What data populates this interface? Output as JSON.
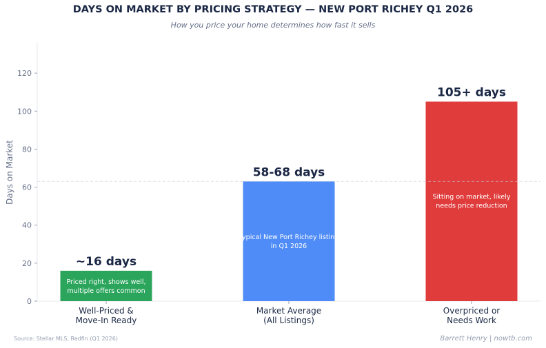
{
  "chart_data": {
    "type": "bar",
    "title": "DAYS ON MARKET BY PRICING STRATEGY — NEW PORT RICHEY Q1 2026",
    "subtitle": "How you price your home determines how fast it sells",
    "ylabel": "Days on Market",
    "xlabel": "",
    "ylim": [
      0,
      136
    ],
    "yticks": [
      0,
      20,
      40,
      60,
      80,
      100,
      120
    ],
    "grid": false,
    "categories": [
      [
        "Well-Priced &",
        "Move-In Ready"
      ],
      [
        "Market Average",
        "(All Listings)"
      ],
      [
        "Overpriced or",
        "Needs Work"
      ]
    ],
    "values": [
      16,
      63,
      105
    ],
    "data_labels": [
      "~16 days",
      "58-68 days",
      "105+ days"
    ],
    "annotations": [
      [
        "Priced right, shows well,",
        "multiple offers common"
      ],
      [
        "Typical New Port Richey listing",
        "in Q1 2026"
      ],
      [
        "Sitting on market, likely",
        "needs price reduction"
      ]
    ],
    "colors": [
      "#2ba55c",
      "#4f8cf7",
      "#e03c3c"
    ],
    "reference_line": 63
  },
  "footer": {
    "source": "Source: Stellar MLS, Redfin (Q1 2026)",
    "credit": "Barrett Henry | nowtb.com"
  }
}
